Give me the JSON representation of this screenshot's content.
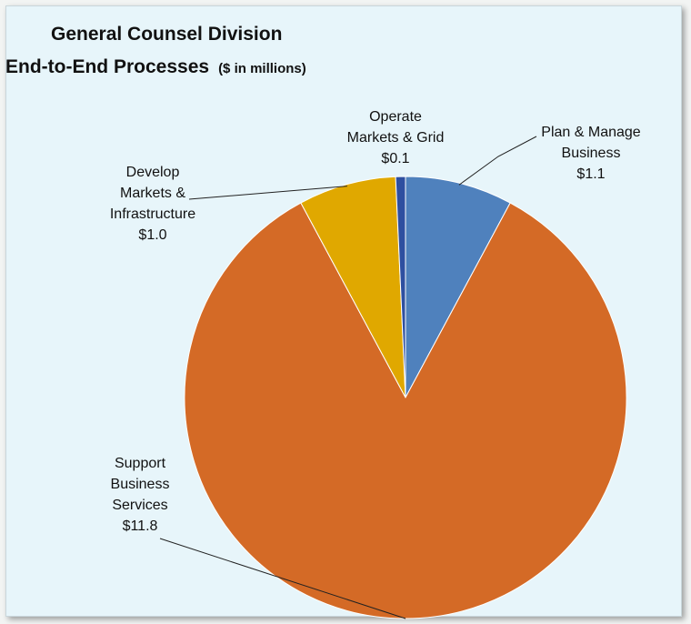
{
  "chart_data": {
    "type": "pie",
    "title": "General Counsel Division",
    "subtitle": "End-to-End Processes",
    "unit_note": "($ in millions)",
    "slices": [
      {
        "name": "Plan & Manage Business",
        "value": 1.1,
        "label": "$1.1",
        "color": "#4f81bd"
      },
      {
        "name": "Support Business Services",
        "value": 11.8,
        "label": "$11.8",
        "color": "#d46a26"
      },
      {
        "name": "Develop Markets & Infrastructure",
        "value": 1.0,
        "label": "$1.0",
        "color": "#e0a800"
      },
      {
        "name": "Operate Markets & Grid",
        "value": 0.1,
        "label": "$0.1",
        "color": "#2e4fa0"
      }
    ]
  },
  "labels": {
    "plan": {
      "l1": "Plan & Manage",
      "l2": "Business",
      "value": "$1.1"
    },
    "operate": {
      "l1": "Operate",
      "l2": "Markets & Grid",
      "value": "$0.1"
    },
    "develop": {
      "l1": "Develop",
      "l2": "Markets &",
      "l3": "Infrastructure",
      "value": "$1.0"
    },
    "support": {
      "l1": "Support",
      "l2": "Business",
      "l3": "Services",
      "value": "$11.8"
    }
  }
}
